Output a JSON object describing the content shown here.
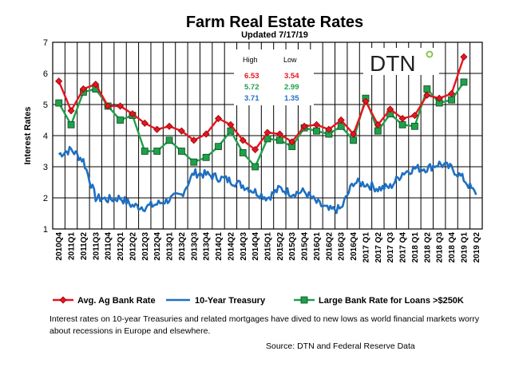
{
  "chart_data": {
    "type": "line",
    "title": "Farm Real Estate Rates",
    "subtitle": "Updated  7/17/19",
    "ylabel": "Interest Rates",
    "ylim": [
      1,
      7
    ],
    "yticks": [
      "1",
      "2",
      "3",
      "4",
      "5",
      "6",
      "7"
    ],
    "grid": true,
    "categories": [
      "2010Q4",
      "2011Q1",
      "2011Q2",
      "2011Q3",
      "2011Q4",
      "2012Q1",
      "2012Q2",
      "2012Q3",
      "2012Q4",
      "2013Q1",
      "2013Q2",
      "2013Q3",
      "2013Q4",
      "2014Q1",
      "2014Q2",
      "2014Q3",
      "2014Q4",
      "2015Q1",
      "2015Q2",
      "2015Q3",
      "2015Q4",
      "2016Q1",
      "2016Q2",
      "2016Q3",
      "2016Q4",
      "2017 Q1",
      "2017 Q2",
      "2017 Q3",
      "2017 Q4",
      "2018 Q1",
      "2018 Q2",
      "2018 Q3",
      "2018 Q4",
      "2019 Q1",
      "2019 Q2"
    ],
    "series": [
      {
        "name": "Avg. Ag Bank Rate",
        "color": "#e8141e",
        "marker": "diamond",
        "values": [
          5.75,
          4.8,
          5.5,
          5.65,
          4.95,
          4.95,
          4.7,
          4.4,
          4.2,
          4.3,
          4.15,
          3.85,
          4.05,
          4.55,
          4.35,
          3.85,
          3.55,
          4.1,
          4.05,
          3.8,
          4.3,
          4.35,
          4.2,
          4.5,
          4.05,
          5.1,
          4.35,
          4.85,
          4.55,
          4.65,
          5.3,
          5.2,
          5.35,
          6.53,
          null
        ]
      },
      {
        "name": "10-Year Treasury",
        "color": "#1e70c2",
        "marker": "none",
        "values": [
          3.4,
          3.55,
          3.2,
          2.0,
          1.95,
          2.0,
          1.75,
          1.7,
          1.8,
          1.95,
          2.1,
          2.8,
          2.75,
          2.65,
          2.55,
          2.4,
          2.2,
          2.0,
          2.3,
          2.15,
          2.2,
          1.85,
          1.6,
          1.65,
          2.5,
          2.45,
          2.3,
          2.35,
          2.8,
          2.95,
          2.95,
          3.1,
          2.95,
          2.6,
          2.1
        ]
      },
      {
        "name": "Large Bank Rate for Loans >$250K",
        "color": "#1fa04a",
        "marker": "square",
        "values": [
          5.05,
          4.35,
          5.4,
          5.5,
          4.95,
          4.5,
          4.65,
          3.5,
          3.5,
          3.85,
          3.5,
          3.15,
          3.3,
          3.65,
          4.15,
          3.45,
          3.0,
          3.9,
          3.85,
          3.65,
          4.25,
          4.15,
          4.05,
          4.3,
          3.85,
          5.2,
          4.15,
          4.7,
          4.35,
          4.3,
          5.5,
          5.05,
          5.15,
          5.72,
          null
        ]
      }
    ],
    "highlow": {
      "header_high": "High",
      "header_low": "Low",
      "rows": [
        {
          "high": "6.53",
          "low": "3.54",
          "color": "#e8141e"
        },
        {
          "high": "5.72",
          "low": "2.99",
          "color": "#1fa04a"
        },
        {
          "high": "3.71",
          "low": "1.35",
          "color": "#1e70c2"
        }
      ]
    },
    "logo_text": "DTN",
    "logo_dot_color": "#7dc242"
  },
  "caption": "Interest rates on 10-year Treasuries and related mortgages have dived to new lows as world financial markets worry about recessions in Europe and elsewhere.",
  "source": "Source: DTN  and Federal Reserve Data"
}
